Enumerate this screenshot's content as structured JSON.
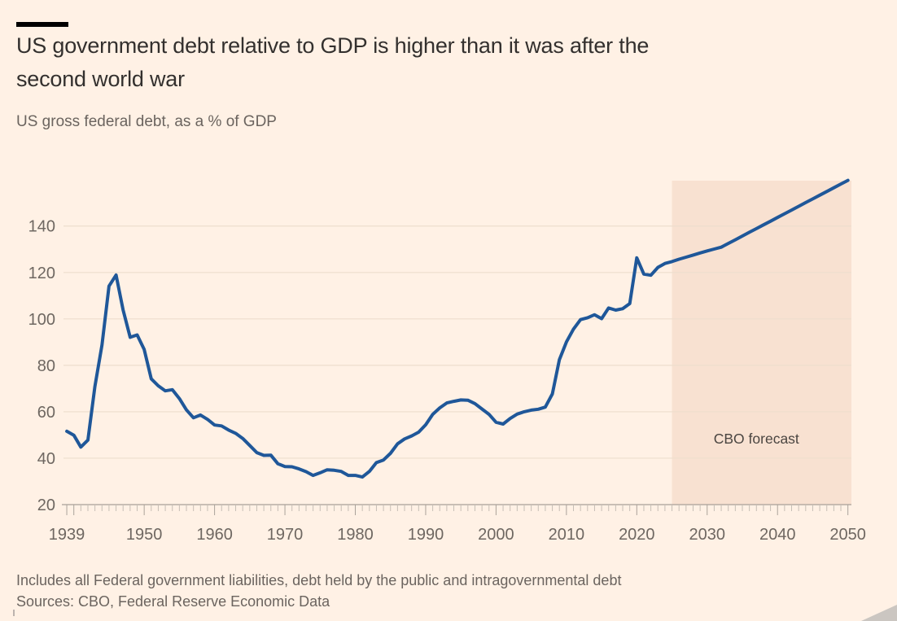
{
  "page": {
    "background": "#FFF1E5",
    "accent_bar_color": "#000000"
  },
  "header": {
    "title_line1": "US government debt relative to GDP is higher than it was after the",
    "title_line2": "second world war",
    "subtitle": "US gross federal debt, as a % of GDP"
  },
  "footer": {
    "note": "Includes all Federal government liabilities, debt held by the public and intragovernmental debt",
    "sources": "Sources: CBO, Federal Reserve Economic Data"
  },
  "chart_data": {
    "type": "line",
    "title": "US gross federal debt, as a % of GDP",
    "xlabel": "",
    "ylabel": "% of GDP",
    "xlim": [
      1938.3,
      2050.5
    ],
    "ylim": [
      20,
      162
    ],
    "grid": "horizontal",
    "legend_position": "none",
    "x_axis": {
      "labeled_ticks": [
        1939,
        1950,
        1960,
        1970,
        1980,
        1990,
        2000,
        2010,
        2020,
        2030,
        2040,
        2050
      ],
      "minor_tick_every": 1,
      "tick_range": [
        1939,
        2050
      ]
    },
    "y_axis": {
      "ticks": [
        20,
        40,
        60,
        80,
        100,
        120,
        140
      ]
    },
    "forecast_band": {
      "from": 2025,
      "to": 2050.5,
      "color": "#f8e1d1"
    },
    "annotations": [
      {
        "text": "CBO forecast",
        "x": 2037,
        "y": 46.3
      }
    ],
    "series": [
      {
        "name": "US gross federal debt, as a % of GDP",
        "color": "#1f5799",
        "x_start": 1939,
        "x_step": 1,
        "values": [
          51.6,
          49.9,
          44.8,
          47.8,
          70.9,
          88.8,
          114.1,
          118.9,
          103.9,
          92.1,
          93.1,
          86.9,
          74.2,
          71.2,
          69.0,
          69.5,
          65.7,
          60.8,
          57.4,
          58.6,
          56.7,
          54.3,
          53.9,
          52.1,
          50.7,
          48.5,
          45.5,
          42.4,
          41.2,
          41.3,
          37.6,
          36.4,
          36.3,
          35.4,
          34.2,
          32.6,
          33.7,
          35.0,
          34.8,
          34.3,
          32.6,
          32.6,
          31.9,
          34.3,
          38.1,
          39.2,
          42.1,
          46.2,
          48.3,
          49.6,
          51.2,
          54.4,
          58.9,
          61.7,
          63.8,
          64.5,
          65.1,
          65.0,
          63.5,
          61.2,
          58.9,
          55.5,
          54.7,
          57.1,
          59.0,
          60.0,
          60.7,
          61.1,
          62.0,
          67.7,
          82.4,
          90.1,
          95.6,
          99.7,
          100.5,
          101.8,
          100.1,
          104.7,
          103.8,
          104.4,
          106.6,
          126.3,
          119.3,
          118.8,
          122.2,
          123.9,
          124.7,
          125.7,
          126.6,
          127.5,
          128.4,
          129.3,
          130.1,
          130.9,
          132.5,
          134.1,
          135.7,
          137.3,
          138.9,
          140.5,
          142.1,
          143.7,
          145.3,
          146.9,
          148.5,
          150.1,
          151.7,
          153.3,
          154.9,
          156.5,
          158.1,
          159.7
        ]
      }
    ]
  }
}
